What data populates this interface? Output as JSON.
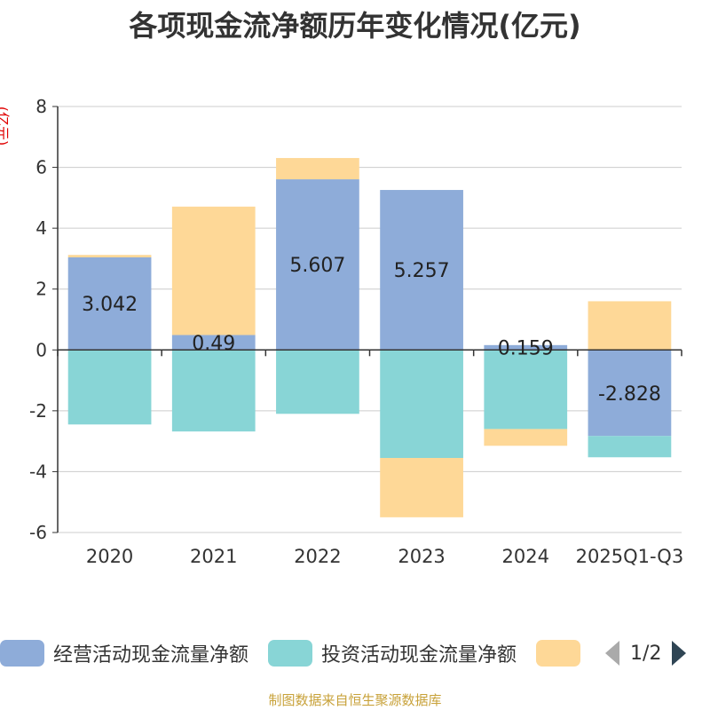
{
  "chart_data": {
    "type": "bar",
    "stacked": true,
    "title": "各项现金流净额历年变化情况(亿元)",
    "ylabel": "(亿元)",
    "xlabel": "",
    "categories": [
      "2020",
      "2021",
      "2022",
      "2023",
      "2024",
      "2025Q1-Q3"
    ],
    "ylim": [
      -6,
      8
    ],
    "yticks": [
      8,
      6,
      4,
      2,
      0,
      -2,
      -4,
      -6
    ],
    "grid": true,
    "series": [
      {
        "name": "经营活动现金流量净额",
        "color": "#8eacd9",
        "values": [
          3.042,
          0.49,
          5.607,
          5.257,
          0.159,
          -2.828
        ],
        "labels": [
          "3.042",
          "0.49",
          "5.607",
          "5.257",
          "0.159",
          "-2.828"
        ],
        "show_labels": true
      },
      {
        "name": "投资活动现金流量净额",
        "color": "#88d5d6",
        "values": [
          -2.45,
          -2.68,
          -2.1,
          -3.55,
          -2.6,
          -0.7
        ],
        "show_labels": false
      },
      {
        "name": "",
        "color": "#fed897",
        "values": [
          0.08,
          4.22,
          0.7,
          -1.95,
          -0.55,
          1.6
        ],
        "show_labels": false
      }
    ],
    "legend_position": "bottom",
    "legend_page": "1/2",
    "source_note": "制图数据来自恒生聚源数据库"
  }
}
